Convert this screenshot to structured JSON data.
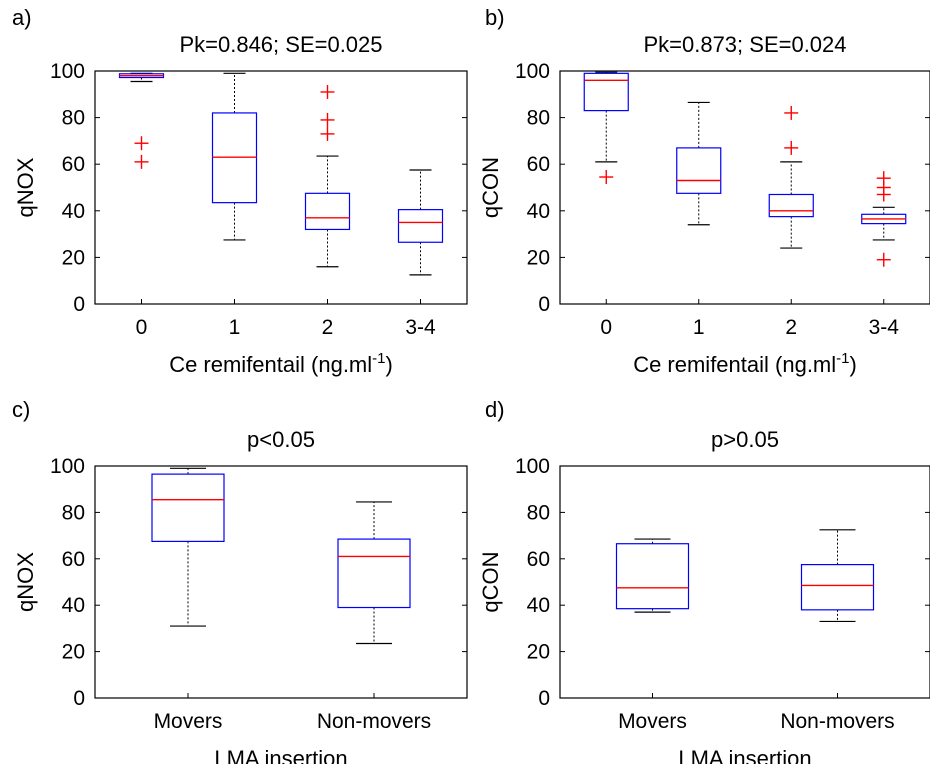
{
  "figure": {
    "panels": [
      "a)",
      "b)",
      "c)",
      "d)"
    ]
  },
  "chart_data": [
    {
      "panel_label": "a)",
      "type": "box",
      "title": "Pk=0.846; SE=0.025",
      "ylabel": "qNOX",
      "xlabel": "Ce remifentail (ng.ml",
      "xlabel_sup": "-1",
      "xlabel_suffix": ")",
      "ylim": [
        0,
        100
      ],
      "yticks": [
        "0",
        "20",
        "40",
        "60",
        "80",
        "100"
      ],
      "categories": [
        "0",
        "1",
        "2",
        "3-4"
      ],
      "boxes": [
        {
          "whisker_low": 95.5,
          "q1": 97.2,
          "median": 98.0,
          "q3": 98.8,
          "whisker_high": 99.0,
          "outliers": [
            69,
            61
          ]
        },
        {
          "whisker_low": 27.5,
          "q1": 43.5,
          "median": 63.0,
          "q3": 82.0,
          "whisker_high": 99.0,
          "outliers": []
        },
        {
          "whisker_low": 16.0,
          "q1": 32.0,
          "median": 37.0,
          "q3": 47.5,
          "whisker_high": 63.5,
          "outliers": [
            91,
            79,
            73
          ]
        },
        {
          "whisker_low": 12.5,
          "q1": 26.5,
          "median": 35.0,
          "q3": 40.5,
          "whisker_high": 57.5,
          "outliers": []
        }
      ],
      "colors": {
        "box": "#0000ff",
        "median": "#ff0000",
        "outlier": "#ff0000",
        "whisker": "#000000"
      }
    },
    {
      "panel_label": "b)",
      "type": "box",
      "title": "Pk=0.873; SE=0.024",
      "ylabel": "qCON",
      "xlabel": "Ce remifentail (ng.ml",
      "xlabel_sup": "-1",
      "xlabel_suffix": ")",
      "ylim": [
        0,
        100
      ],
      "yticks": [
        "0",
        "20",
        "40",
        "60",
        "80",
        "100"
      ],
      "categories": [
        "0",
        "1",
        "2",
        "3-4"
      ],
      "boxes": [
        {
          "whisker_low": 61.0,
          "q1": 83.0,
          "median": 96.0,
          "q3": 99.0,
          "whisker_high": 99.5,
          "outliers": [
            54.5
          ]
        },
        {
          "whisker_low": 34.0,
          "q1": 47.5,
          "median": 53.0,
          "q3": 67.0,
          "whisker_high": 86.5,
          "outliers": []
        },
        {
          "whisker_low": 24.0,
          "q1": 37.5,
          "median": 40.0,
          "q3": 47.0,
          "whisker_high": 61.0,
          "outliers": [
            82,
            67
          ]
        },
        {
          "whisker_low": 27.5,
          "q1": 34.5,
          "median": 36.5,
          "q3": 38.5,
          "whisker_high": 41.5,
          "outliers": [
            54,
            50,
            47,
            19
          ]
        }
      ],
      "colors": {
        "box": "#0000ff",
        "median": "#ff0000",
        "outlier": "#ff0000",
        "whisker": "#000000"
      }
    },
    {
      "panel_label": "c)",
      "type": "box",
      "title": "p<0.05",
      "ylabel": "qNOX",
      "xlabel": "LMA insertion",
      "xlabel_sup": "",
      "xlabel_suffix": "",
      "ylim": [
        0,
        100
      ],
      "yticks": [
        "0",
        "20",
        "40",
        "60",
        "80",
        "100"
      ],
      "categories": [
        "Movers",
        "Non-movers"
      ],
      "boxes": [
        {
          "whisker_low": 31.0,
          "q1": 67.5,
          "median": 85.5,
          "q3": 96.5,
          "whisker_high": 99.0,
          "outliers": []
        },
        {
          "whisker_low": 23.5,
          "q1": 39.0,
          "median": 61.0,
          "q3": 68.5,
          "whisker_high": 84.5,
          "outliers": []
        }
      ],
      "colors": {
        "box": "#0000ff",
        "median": "#ff0000",
        "outlier": "#ff0000",
        "whisker": "#000000"
      }
    },
    {
      "panel_label": "d)",
      "type": "box",
      "title": "p>0.05",
      "ylabel": "qCON",
      "xlabel": "LMA insertion",
      "xlabel_sup": "",
      "xlabel_suffix": "",
      "ylim": [
        0,
        100
      ],
      "yticks": [
        "0",
        "20",
        "40",
        "60",
        "80",
        "100"
      ],
      "categories": [
        "Movers",
        "Non-movers"
      ],
      "boxes": [
        {
          "whisker_low": 37.0,
          "q1": 38.5,
          "median": 47.5,
          "q3": 66.5,
          "whisker_high": 68.5,
          "outliers": []
        },
        {
          "whisker_low": 33.0,
          "q1": 38.0,
          "median": 48.5,
          "q3": 57.5,
          "whisker_high": 72.5,
          "outliers": []
        }
      ],
      "colors": {
        "box": "#0000ff",
        "median": "#ff0000",
        "outlier": "#ff0000",
        "whisker": "#000000"
      }
    }
  ]
}
